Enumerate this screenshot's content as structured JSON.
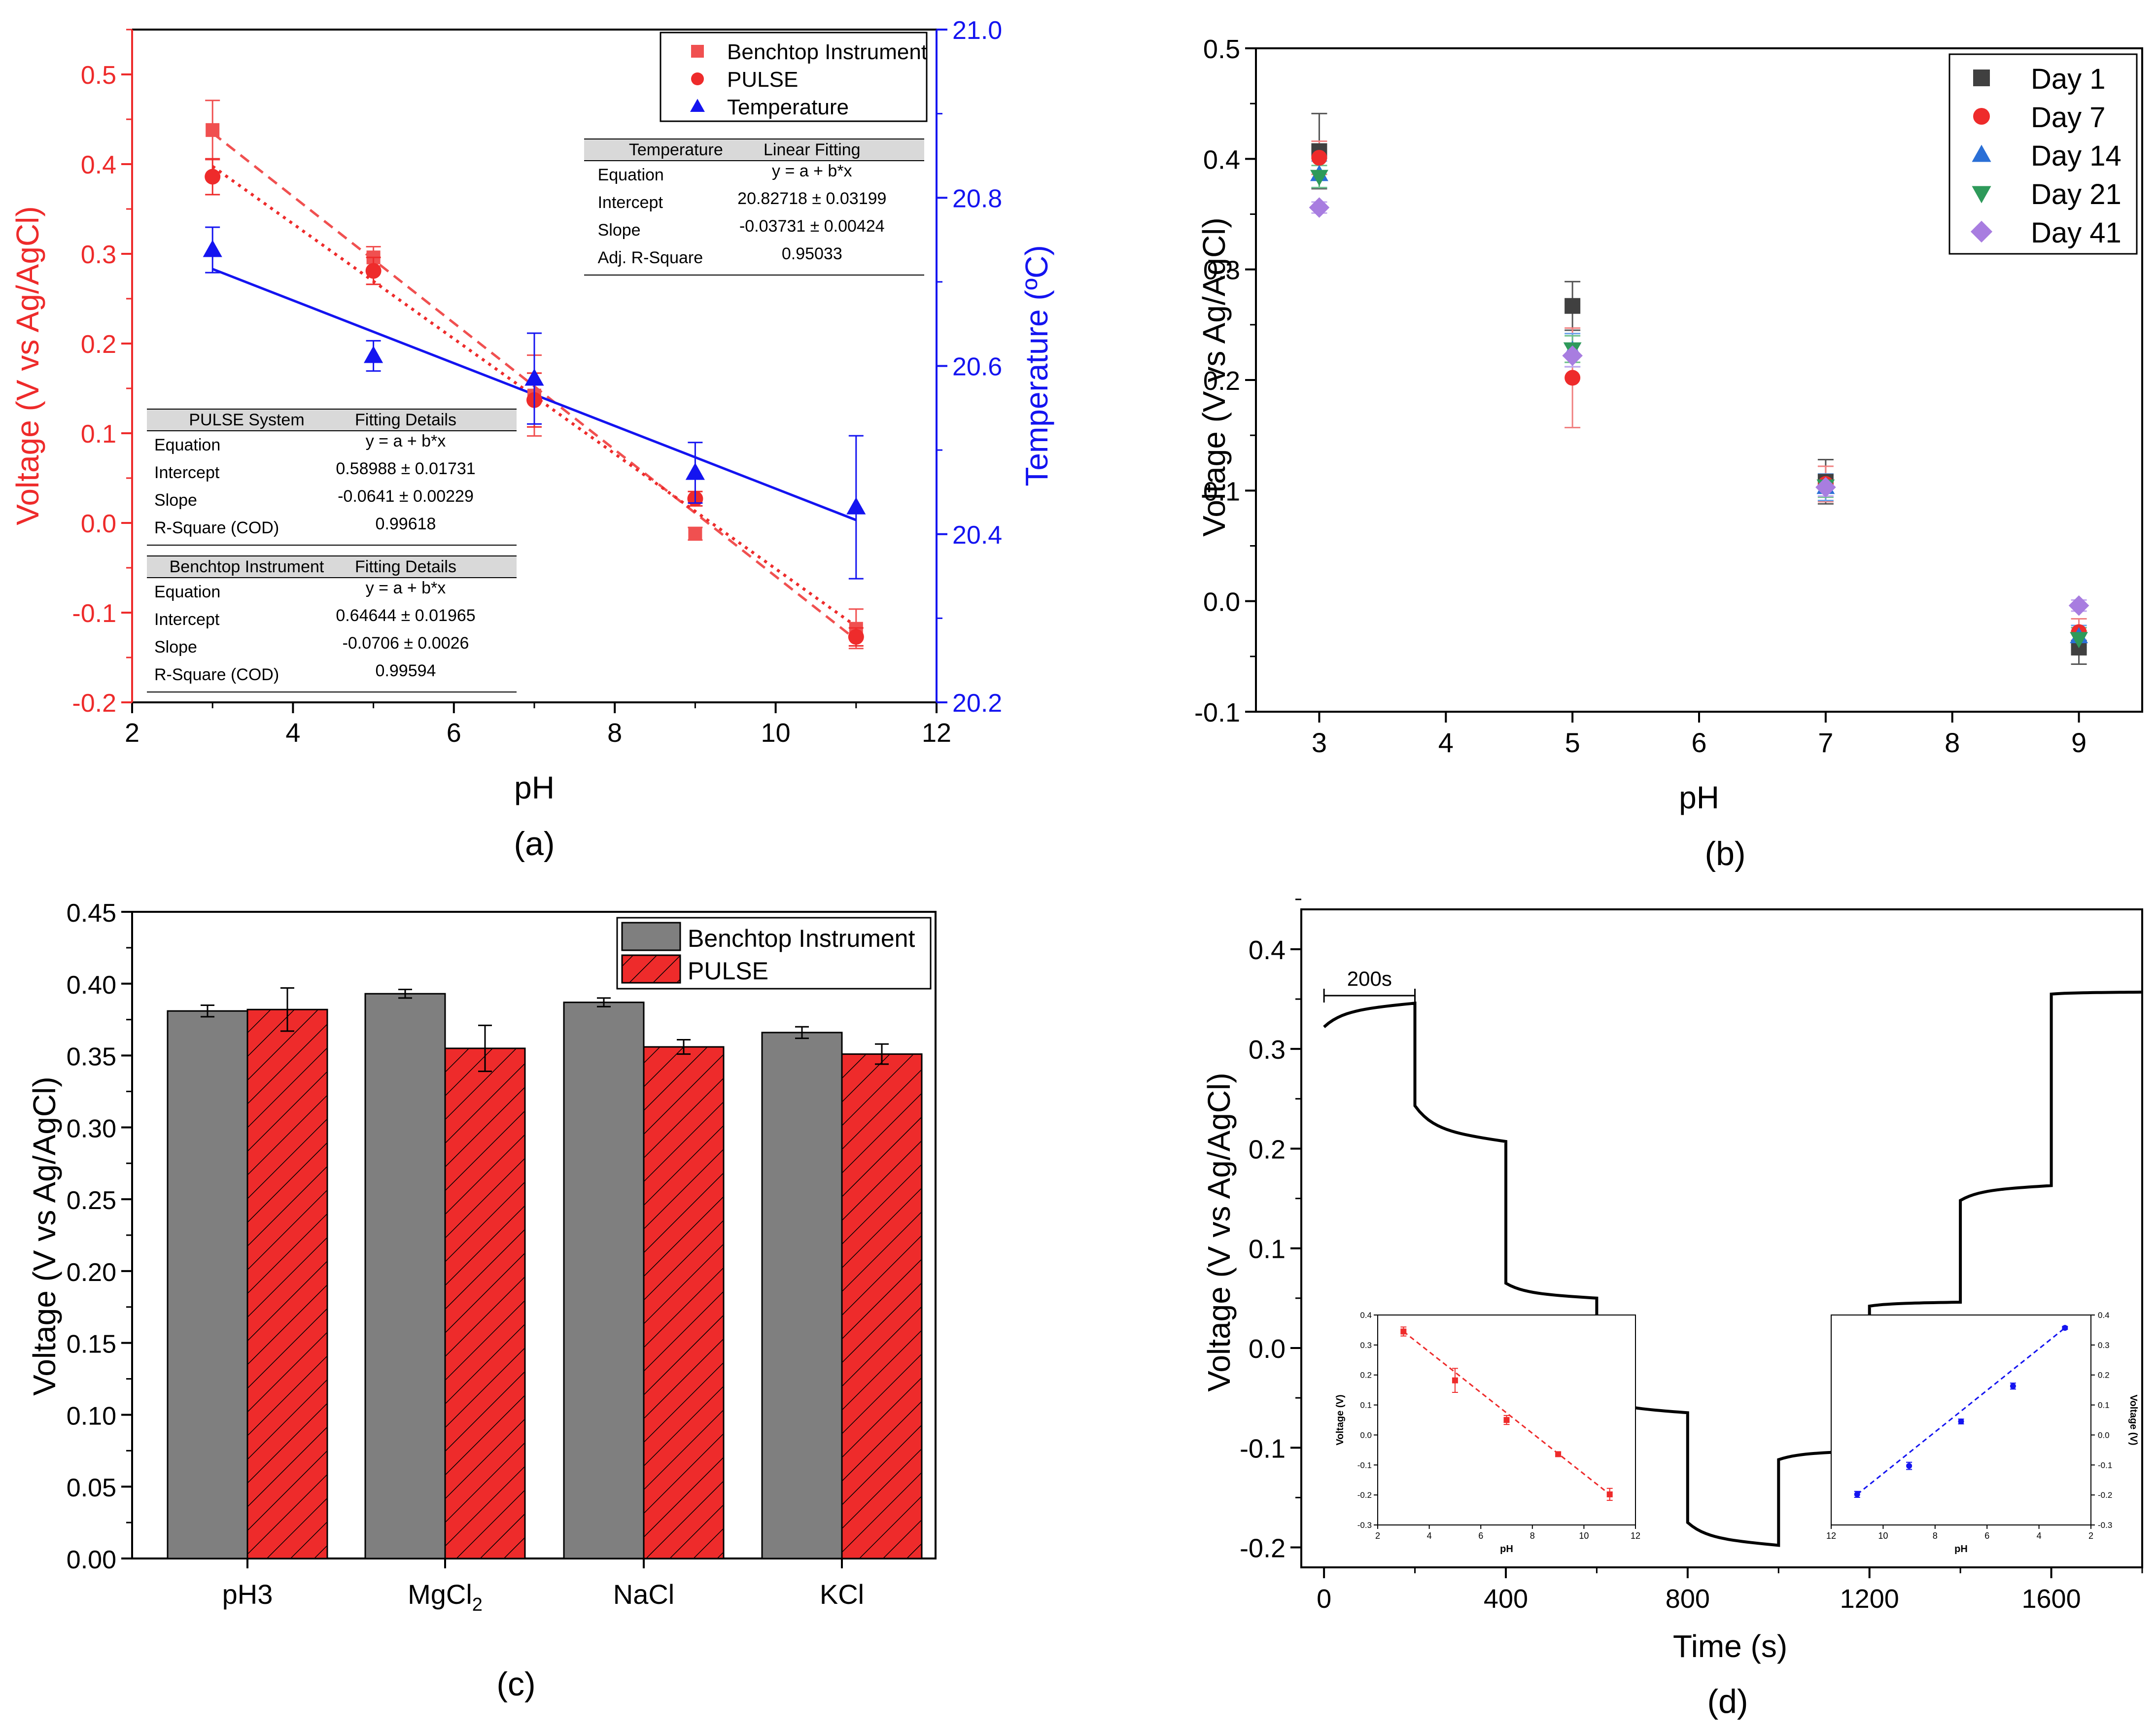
{
  "colors": {
    "red": "#ee2b2b",
    "red_light": "#f05050",
    "blue": "#1414f0",
    "black": "#000000",
    "gray_bar": "#7f7f7f",
    "dark_gray": "#404040",
    "green": "#2e9a5a",
    "purple": "#a87de0",
    "day14_blue": "#2a6fd6"
  },
  "chart_data": [
    {
      "panel": "(a)",
      "type": "scatter",
      "xlabel": "pH",
      "ylabel_left": "Voltage (V vs Ag/AgCl)",
      "ylabel_right": "Temperature (ºC)",
      "xlim": [
        2,
        12
      ],
      "ylim_left": [
        -0.2,
        0.55
      ],
      "ylim_right": [
        20.2,
        21.0
      ],
      "xticks": [
        "2",
        "4",
        "6",
        "8",
        "10",
        "12"
      ],
      "yticks_left": [
        "-0.2",
        "-0.1",
        "0.0",
        "0.1",
        "0.2",
        "0.3",
        "0.4",
        "0.5"
      ],
      "yticks_right": [
        "20.2",
        "20.4",
        "20.6",
        "20.8",
        "21.0"
      ],
      "legend": [
        "Benchtop Instrument",
        "PULSE",
        "Temperature"
      ],
      "series": [
        {
          "name": "Benchtop Instrument",
          "axis": "left",
          "x": [
            3,
            5,
            7,
            9,
            11
          ],
          "y": [
            0.438,
            0.296,
            0.142,
            -0.012,
            -0.118
          ],
          "err": [
            0.033,
            0.012,
            0.045,
            0.007,
            0.022
          ],
          "fit": {
            "intercept": 0.64644,
            "slope": -0.0706
          }
        },
        {
          "name": "PULSE",
          "axis": "left",
          "x": [
            3,
            5,
            7,
            9,
            11
          ],
          "y": [
            0.386,
            0.281,
            0.137,
            0.027,
            -0.127
          ],
          "err": [
            0.02,
            0.015,
            0.03,
            0.008,
            0.01
          ],
          "fit": {
            "intercept": 0.58988,
            "slope": -0.0641
          }
        },
        {
          "name": "Temperature",
          "axis": "right",
          "x": [
            3,
            5,
            7,
            9,
            11
          ],
          "y": [
            20.738,
            20.612,
            20.585,
            20.473,
            20.432
          ],
          "err": [
            0.027,
            0.018,
            0.054,
            0.036,
            0.085
          ],
          "fit": {
            "intercept": 20.82718,
            "slope": -0.03731
          }
        }
      ],
      "tables": [
        {
          "head": [
            "Temperature",
            "Linear Fitting"
          ],
          "rows": [
            [
              "Equation",
              "y = a + b*x"
            ],
            [
              "Intercept",
              "20.82718 ± 0.03199"
            ],
            [
              "Slope",
              "-0.03731 ± 0.00424"
            ],
            [
              "Adj. R-Square",
              "0.95033"
            ]
          ]
        },
        {
          "head": [
            "PULSE System",
            "Fitting Details"
          ],
          "rows": [
            [
              "Equation",
              "y = a + b*x"
            ],
            [
              "Intercept",
              "0.58988 ± 0.01731"
            ],
            [
              "Slope",
              "-0.0641 ± 0.00229"
            ],
            [
              "R-Square (COD)",
              "0.99618"
            ]
          ]
        },
        {
          "head": [
            "Benchtop Instrument",
            "Fitting Details"
          ],
          "rows": [
            [
              "Equation",
              "y = a + b*x"
            ],
            [
              "Intercept",
              "0.64644 ± 0.01965"
            ],
            [
              "Slope",
              "-0.0706 ± 0.0026"
            ],
            [
              "R-Square (COD)",
              "0.99594"
            ]
          ]
        }
      ]
    },
    {
      "panel": "(b)",
      "type": "scatter",
      "xlabel": "pH",
      "ylabel": "Voltage (V vs Ag/AgCl)",
      "xlim": [
        2.5,
        9.5
      ],
      "ylim": [
        -0.1,
        0.5
      ],
      "xticks": [
        "3",
        "4",
        "5",
        "6",
        "7",
        "8",
        "9"
      ],
      "yticks": [
        "-0.1",
        "0.0",
        "0.1",
        "0.2",
        "0.3",
        "0.4",
        "0.5"
      ],
      "legend": [
        "Day 1",
        "Day 7",
        "Day 14",
        "Day 21",
        "Day 41"
      ],
      "x": [
        3,
        5,
        7,
        9
      ],
      "series": [
        {
          "name": "Day 1",
          "marker": "square",
          "values": [
            0.407,
            0.267,
            0.108,
            -0.042
          ],
          "err": [
            0.034,
            0.022,
            0.02,
            0.015
          ]
        },
        {
          "name": "Day 7",
          "marker": "circle",
          "values": [
            0.401,
            0.202,
            0.106,
            -0.028
          ],
          "err": [
            0.015,
            0.045,
            0.016,
            0.012
          ]
        },
        {
          "name": "Day 14",
          "marker": "triangle-up",
          "values": [
            0.386,
            0.227,
            0.103,
            -0.032
          ],
          "err": [
            0.012,
            0.015,
            0.012,
            0.01
          ]
        },
        {
          "name": "Day 21",
          "marker": "triangle-down",
          "values": [
            0.384,
            0.228,
            0.104,
            -0.034
          ],
          "err": [
            0.01,
            0.012,
            0.01,
            0.01
          ]
        },
        {
          "name": "Day 41",
          "marker": "diamond",
          "values": [
            0.356,
            0.222,
            0.103,
            -0.004
          ],
          "err": [
            0.005,
            0.01,
            0.008,
            0.005
          ]
        }
      ]
    },
    {
      "panel": "(c)",
      "type": "bar",
      "ylabel": "Voltage (V vs Ag/AgCl)",
      "ylim": [
        0,
        0.45
      ],
      "yticks": [
        "0.00",
        "0.05",
        "0.10",
        "0.15",
        "0.20",
        "0.25",
        "0.30",
        "0.35",
        "0.40",
        "0.45"
      ],
      "categories": [
        "pH3",
        "MgCl2",
        "NaCl",
        "KCl"
      ],
      "legend": [
        "Benchtop Instrument",
        "PULSE"
      ],
      "series": [
        {
          "name": "Benchtop Instrument",
          "values": [
            0.381,
            0.393,
            0.387,
            0.366
          ],
          "err": [
            0.004,
            0.003,
            0.003,
            0.004
          ]
        },
        {
          "name": "PULSE",
          "values": [
            0.382,
            0.355,
            0.356,
            0.351
          ],
          "err": [
            0.015,
            0.016,
            0.005,
            0.007
          ]
        }
      ]
    },
    {
      "panel": "(d)",
      "type": "line",
      "xlabel": "Time (s)",
      "ylabel": "Voltage (V vs Ag/AgCl)",
      "xlim": [
        -50,
        1800
      ],
      "ylim": [
        -0.22,
        0.44
      ],
      "xticks": [
        "0",
        "400",
        "800",
        "1200",
        "1600"
      ],
      "yticks": [
        "-0.2",
        "-0.1",
        "0.0",
        "0.1",
        "0.2",
        "0.3",
        "0.4"
      ],
      "scale_bar_label": "200s",
      "steps": [
        {
          "t0": 0,
          "t1": 200,
          "v_start": 0.322,
          "v_end": 0.346
        },
        {
          "t0": 200,
          "t1": 400,
          "v_start": 0.243,
          "v_end": 0.207
        },
        {
          "t0": 400,
          "t1": 600,
          "v_start": 0.065,
          "v_end": 0.05
        },
        {
          "t0": 600,
          "t1": 800,
          "v_start": -0.047,
          "v_end": -0.065
        },
        {
          "t0": 800,
          "t1": 1000,
          "v_start": -0.175,
          "v_end": -0.198
        },
        {
          "t0": 1000,
          "t1": 1200,
          "v_start": -0.112,
          "v_end": -0.103
        },
        {
          "t0": 1200,
          "t1": 1400,
          "v_start": 0.042,
          "v_end": 0.046
        },
        {
          "t0": 1400,
          "t1": 1600,
          "v_start": 0.148,
          "v_end": 0.163
        },
        {
          "t0": 1600,
          "t1": 1800,
          "v_start": 0.355,
          "v_end": 0.357
        }
      ],
      "insets": [
        {
          "xlabel": "pH",
          "ylabel": "Voltage (V)",
          "xlim": [
            2,
            12
          ],
          "ylim": [
            -0.3,
            0.4
          ],
          "xticks": [
            "2",
            "4",
            "6",
            "8",
            "10",
            "12"
          ],
          "yticks": [
            "-0.3",
            "-0.2",
            "-0.1",
            "0.0",
            "0.1",
            "0.2",
            "0.3",
            "0.4"
          ],
          "x": [
            3,
            5,
            7,
            9,
            11
          ],
          "y": [
            0.345,
            0.182,
            0.05,
            -0.064,
            -0.198
          ],
          "err": [
            0.015,
            0.04,
            0.015,
            0.008,
            0.02
          ]
        },
        {
          "xlabel": "pH",
          "ylabel": "Voltage (V)",
          "xlim": [
            12,
            2
          ],
          "ylim": [
            -0.3,
            0.4
          ],
          "xticks": [
            "12",
            "10",
            "8",
            "6",
            "4",
            "2"
          ],
          "yticks": [
            "-0.3",
            "-0.2",
            "-0.1",
            "0.0",
            "0.1",
            "0.2",
            "0.3",
            "0.4"
          ],
          "x": [
            11,
            9,
            7,
            5,
            3
          ],
          "y": [
            -0.198,
            -0.103,
            0.045,
            0.163,
            0.357
          ],
          "err": [
            0.01,
            0.012,
            0.008,
            0.01,
            0.005
          ]
        }
      ]
    }
  ]
}
